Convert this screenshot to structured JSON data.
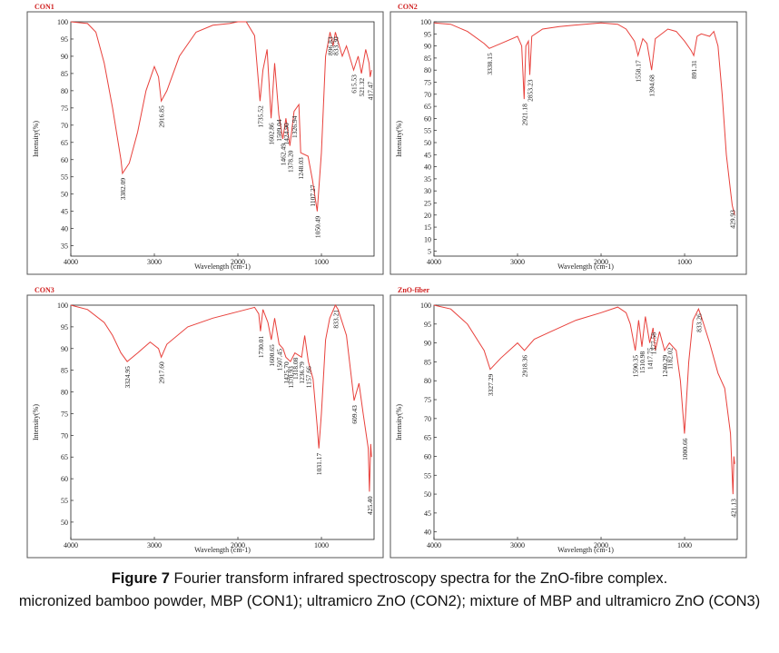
{
  "chart_data": [
    {
      "type": "line",
      "title": "CON1",
      "xlabel": "Wavelength (cm-1)",
      "ylabel": "Intensity(%)",
      "color": "#e8413c",
      "xlim": [
        4000,
        370
      ],
      "ylim": [
        32,
        100
      ],
      "xticks": [
        4000,
        3000,
        2000,
        1000
      ],
      "yticks": [
        35,
        40,
        45,
        50,
        55,
        60,
        65,
        70,
        75,
        80,
        85,
        90,
        95,
        100
      ],
      "x": [
        4000,
        3800,
        3700,
        3600,
        3500,
        3400,
        3382,
        3300,
        3200,
        3100,
        3000,
        2950,
        2917,
        2850,
        2700,
        2500,
        2300,
        2100,
        2000,
        1900,
        1800,
        1735,
        1700,
        1650,
        1603,
        1560,
        1510,
        1462,
        1425,
        1378,
        1327,
        1270,
        1248,
        1160,
        1107,
        1050,
        1000,
        950,
        897,
        860,
        833,
        750,
        700,
        615,
        560,
        521,
        470,
        430,
        417,
        400
      ],
      "values": [
        100,
        99.5,
        97,
        88,
        75,
        60,
        56,
        59,
        68,
        80,
        87,
        84,
        77,
        80,
        90,
        97,
        99,
        99.5,
        100,
        100,
        96,
        77,
        86,
        92,
        72,
        88,
        73,
        66,
        72,
        64,
        74,
        76,
        62,
        61,
        54,
        45,
        62,
        90,
        97,
        93,
        97,
        90,
        93,
        86,
        90,
        85,
        92,
        88,
        84,
        86
      ],
      "annotations": [
        {
          "text": "3382.09",
          "x": 3382,
          "y": 56
        },
        {
          "text": "2916.85",
          "x": 2917,
          "y": 77
        },
        {
          "text": "1735.52",
          "x": 1735,
          "y": 77
        },
        {
          "text": "1602.86",
          "x": 1603,
          "y": 72
        },
        {
          "text": "1509.04",
          "x": 1510,
          "y": 73
        },
        {
          "text": "1462.49",
          "x": 1462,
          "y": 66
        },
        {
          "text": "1424.90",
          "x": 1425,
          "y": 72
        },
        {
          "text": "1378.20",
          "x": 1378,
          "y": 64
        },
        {
          "text": "1326.94",
          "x": 1327,
          "y": 74
        },
        {
          "text": "1248.03",
          "x": 1248,
          "y": 62
        },
        {
          "text": "1107.27",
          "x": 1107,
          "y": 54
        },
        {
          "text": "1050.49",
          "x": 1050,
          "y": 45
        },
        {
          "text": "896.83",
          "x": 897,
          "y": 97
        },
        {
          "text": "833.30",
          "x": 833,
          "y": 97
        },
        {
          "text": "615.53",
          "x": 615,
          "y": 86
        },
        {
          "text": "521.32",
          "x": 521,
          "y": 85
        },
        {
          "text": "417.47",
          "x": 417,
          "y": 84
        }
      ]
    },
    {
      "type": "line",
      "title": "CON2",
      "xlabel": "Wavelength (cm-1)",
      "ylabel": "Intensity(%)",
      "color": "#e8413c",
      "xlim": [
        4000,
        370
      ],
      "ylim": [
        3,
        100
      ],
      "xticks": [
        4000,
        3000,
        2000,
        1000
      ],
      "yticks": [
        5,
        10,
        15,
        20,
        25,
        30,
        35,
        40,
        45,
        50,
        55,
        60,
        65,
        70,
        75,
        80,
        85,
        90,
        95,
        100
      ],
      "x": [
        4000,
        3800,
        3600,
        3400,
        3338,
        3200,
        3000,
        2950,
        2921,
        2900,
        2870,
        2853,
        2830,
        2700,
        2500,
        2200,
        2000,
        1800,
        1700,
        1600,
        1558,
        1500,
        1450,
        1395,
        1350,
        1200,
        1100,
        1000,
        920,
        891,
        850,
        800,
        700,
        650,
        600,
        550,
        500,
        450,
        430,
        400
      ],
      "values": [
        99.5,
        99,
        96,
        91,
        89,
        91,
        94,
        90,
        68,
        90,
        92,
        78,
        94,
        97,
        98,
        99,
        99.5,
        99,
        97,
        92,
        86,
        93,
        91,
        80,
        93,
        97,
        96,
        92,
        88,
        86,
        94,
        95,
        94,
        96,
        90,
        70,
        45,
        30,
        24,
        20
      ],
      "annotations": [
        {
          "text": "3338.15",
          "x": 3338,
          "y": 89
        },
        {
          "text": "2921.18",
          "x": 2921,
          "y": 68
        },
        {
          "text": "2853.23",
          "x": 2853,
          "y": 78
        },
        {
          "text": "1558.17",
          "x": 1558,
          "y": 86
        },
        {
          "text": "1394.68",
          "x": 1395,
          "y": 80
        },
        {
          "text": "891.31",
          "x": 891,
          "y": 86
        },
        {
          "text": "429.93",
          "x": 430,
          "y": 24
        }
      ]
    },
    {
      "type": "line",
      "title": "CON3",
      "xlabel": "Wavelength (cm-1)",
      "ylabel": "Intensity(%)",
      "color": "#e8413c",
      "xlim": [
        4000,
        370
      ],
      "ylim": [
        46,
        100
      ],
      "xticks": [
        4000,
        3000,
        2000,
        1000
      ],
      "yticks": [
        50,
        55,
        60,
        65,
        70,
        75,
        80,
        85,
        90,
        95,
        100
      ],
      "x": [
        4000,
        3800,
        3600,
        3500,
        3400,
        3325,
        3200,
        3050,
        2950,
        2917,
        2850,
        2600,
        2300,
        2000,
        1800,
        1750,
        1730,
        1700,
        1640,
        1600,
        1560,
        1507,
        1460,
        1425,
        1371,
        1318,
        1237,
        1200,
        1157,
        1100,
        1050,
        1031,
        1000,
        950,
        900,
        833,
        800,
        700,
        609,
        550,
        500,
        440,
        425,
        410,
        400
      ],
      "values": [
        100,
        99,
        96,
        93,
        89,
        87,
        89,
        91.5,
        90,
        88,
        91,
        95,
        97,
        98.5,
        99.5,
        98,
        94,
        99,
        96,
        92,
        97,
        91,
        90,
        88,
        87,
        89,
        88,
        93,
        87,
        83,
        72,
        67,
        75,
        92,
        97,
        100,
        99,
        93,
        78,
        82,
        75,
        67,
        57,
        68,
        65
      ],
      "annotations": [
        {
          "text": "3324.95",
          "x": 3325,
          "y": 87
        },
        {
          "text": "2917.60",
          "x": 2917,
          "y": 88
        },
        {
          "text": "1730.01",
          "x": 1730,
          "y": 94
        },
        {
          "text": "1600.65",
          "x": 1600,
          "y": 92
        },
        {
          "text": "1507.45",
          "x": 1507,
          "y": 91
        },
        {
          "text": "1425.70",
          "x": 1425,
          "y": 88
        },
        {
          "text": "1370.93",
          "x": 1371,
          "y": 87
        },
        {
          "text": "1318.08",
          "x": 1318,
          "y": 89
        },
        {
          "text": "1236.79",
          "x": 1237,
          "y": 88
        },
        {
          "text": "1157.66",
          "x": 1157,
          "y": 87
        },
        {
          "text": "1031.17",
          "x": 1031,
          "y": 67
        },
        {
          "text": "833.21",
          "x": 833,
          "y": 100
        },
        {
          "text": "609.43",
          "x": 609,
          "y": 78
        },
        {
          "text": "425.40",
          "x": 425,
          "y": 57
        }
      ]
    },
    {
      "type": "line",
      "title": "ZnO-fiber",
      "xlabel": "Wavelength (cm-1)",
      "ylabel": "Intensity(%)",
      "color": "#e8413c",
      "xlim": [
        4000,
        370
      ],
      "ylim": [
        38,
        100
      ],
      "xticks": [
        4000,
        3000,
        2000,
        1000
      ],
      "yticks": [
        40,
        45,
        50,
        55,
        60,
        65,
        70,
        75,
        80,
        85,
        90,
        95,
        100
      ],
      "x": [
        4000,
        3800,
        3600,
        3400,
        3327,
        3200,
        3000,
        2918,
        2800,
        2600,
        2300,
        2000,
        1800,
        1700,
        1650,
        1590,
        1550,
        1511,
        1470,
        1418,
        1378,
        1350,
        1300,
        1240,
        1182,
        1100,
        1050,
        1001,
        950,
        900,
        833,
        800,
        700,
        600,
        520,
        450,
        421,
        410,
        400
      ],
      "values": [
        100,
        99,
        95,
        88,
        83,
        86,
        90,
        88,
        91,
        93,
        96,
        98,
        99.5,
        98,
        95,
        88,
        96,
        89,
        97,
        90,
        94,
        88,
        93,
        88,
        90,
        88,
        80,
        66,
        85,
        96,
        99,
        97,
        90,
        82,
        78,
        66,
        50,
        60,
        58
      ],
      "annotations": [
        {
          "text": "3327.29",
          "x": 3327,
          "y": 83
        },
        {
          "text": "2918.36",
          "x": 2918,
          "y": 88
        },
        {
          "text": "1590.35",
          "x": 1590,
          "y": 88
        },
        {
          "text": "1510.98",
          "x": 1511,
          "y": 89
        },
        {
          "text": "1417.75",
          "x": 1418,
          "y": 90
        },
        {
          "text": "1377.58",
          "x": 1378,
          "y": 94
        },
        {
          "text": "1240.29",
          "x": 1240,
          "y": 88
        },
        {
          "text": "1182.02",
          "x": 1182,
          "y": 90
        },
        {
          "text": "1000.66",
          "x": 1001,
          "y": 66
        },
        {
          "text": "833.26",
          "x": 833,
          "y": 99
        },
        {
          "text": "421.13",
          "x": 421,
          "y": 50
        }
      ]
    }
  ],
  "caption": {
    "label": "Figure 7",
    "text": "Fourier transform infrared spectroscopy spectra for the ZnO-fibre complex.",
    "note": "micronized bamboo powder, MBP (CON1); ultramicro ZnO (CON2); mixture of MBP and ultramicro ZnO (CON3)"
  }
}
